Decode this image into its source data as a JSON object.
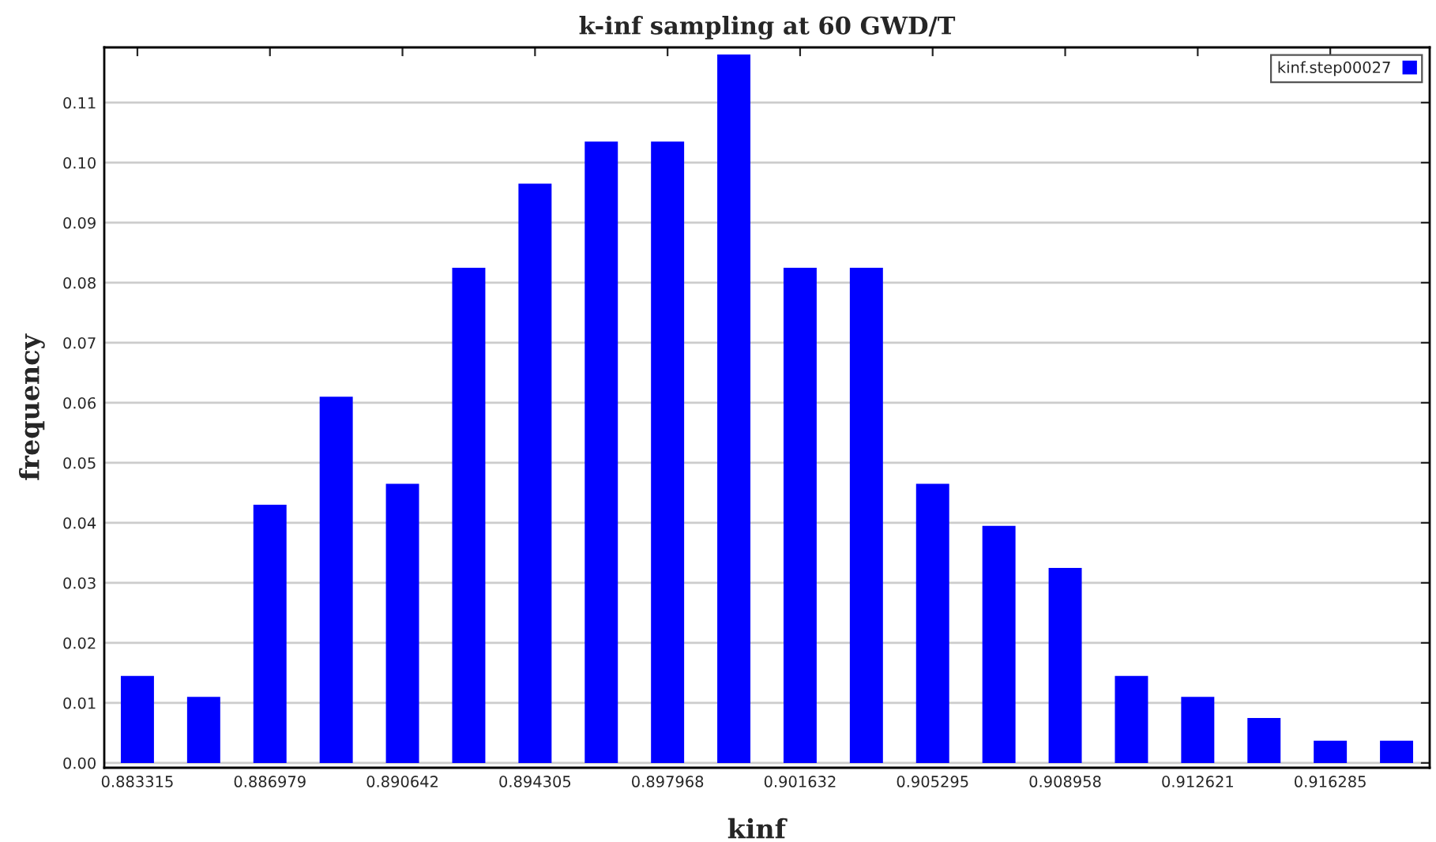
{
  "chart_data": {
    "type": "bar",
    "title": "k-inf sampling at 60 GWD/T",
    "xlabel": "kinf",
    "ylabel": "frequency",
    "categories": [
      "0.883315",
      null,
      "0.886979",
      null,
      "0.890642",
      null,
      "0.894305",
      null,
      "0.897968",
      null,
      "0.901632",
      null,
      "0.905295",
      null,
      "0.908958",
      null,
      "0.912621",
      null,
      "0.916285",
      null
    ],
    "series": [
      {
        "name": "kinf.step00027",
        "color": "#0000ff",
        "values": [
          0.0145,
          0.011,
          0.043,
          0.061,
          0.0465,
          0.0825,
          0.0965,
          0.1035,
          0.1035,
          0.118,
          0.0825,
          0.0825,
          0.0465,
          0.0395,
          0.0325,
          0.0145,
          0.011,
          0.0075,
          0.0037,
          0.0037
        ]
      }
    ],
    "ylim": [
      -0.0008,
      0.1192
    ],
    "yticks": [
      {
        "value": 0,
        "label": "0.00"
      },
      {
        "value": 0.01,
        "label": "0.01"
      },
      {
        "value": 0.02,
        "label": "0.02"
      },
      {
        "value": 0.03,
        "label": "0.03"
      },
      {
        "value": 0.04,
        "label": "0.04"
      },
      {
        "value": 0.05,
        "label": "0.05"
      },
      {
        "value": 0.06,
        "label": "0.06"
      },
      {
        "value": 0.07,
        "label": "0.07"
      },
      {
        "value": 0.08,
        "label": "0.08"
      },
      {
        "value": 0.09,
        "label": "0.09"
      },
      {
        "value": 0.1,
        "label": "0.10"
      },
      {
        "value": 0.11,
        "label": "0.11"
      }
    ],
    "grid": "y",
    "legend": "top right"
  }
}
